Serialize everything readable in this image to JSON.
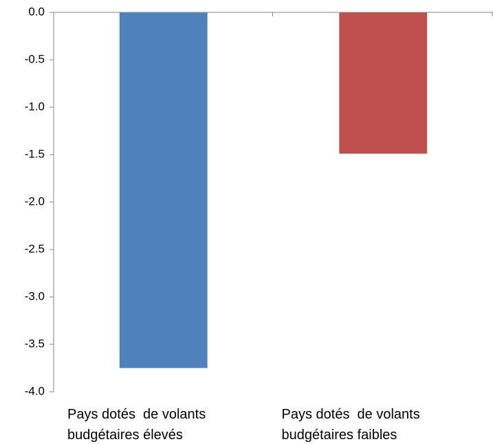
{
  "chart_data": {
    "type": "bar",
    "categories": [
      "Pays dotés  de volants budgétaires élevés",
      "Pays dotés  de volants budgétaires faibles"
    ],
    "values": [
      -3.75,
      -1.49
    ],
    "colors": [
      "#4f81bd",
      "#c0504d"
    ],
    "ylim": [
      -4,
      0
    ],
    "yticks": [
      {
        "value": 0,
        "label": "0.0"
      },
      -0.5,
      {
        "value": -1,
        "label": "-1.0"
      },
      -1.5,
      {
        "value": -2,
        "label": "-2.0"
      },
      -2.5,
      {
        "value": -3,
        "label": "-3.0"
      },
      -3.5,
      {
        "value": -4,
        "label": "-4.0"
      }
    ]
  }
}
